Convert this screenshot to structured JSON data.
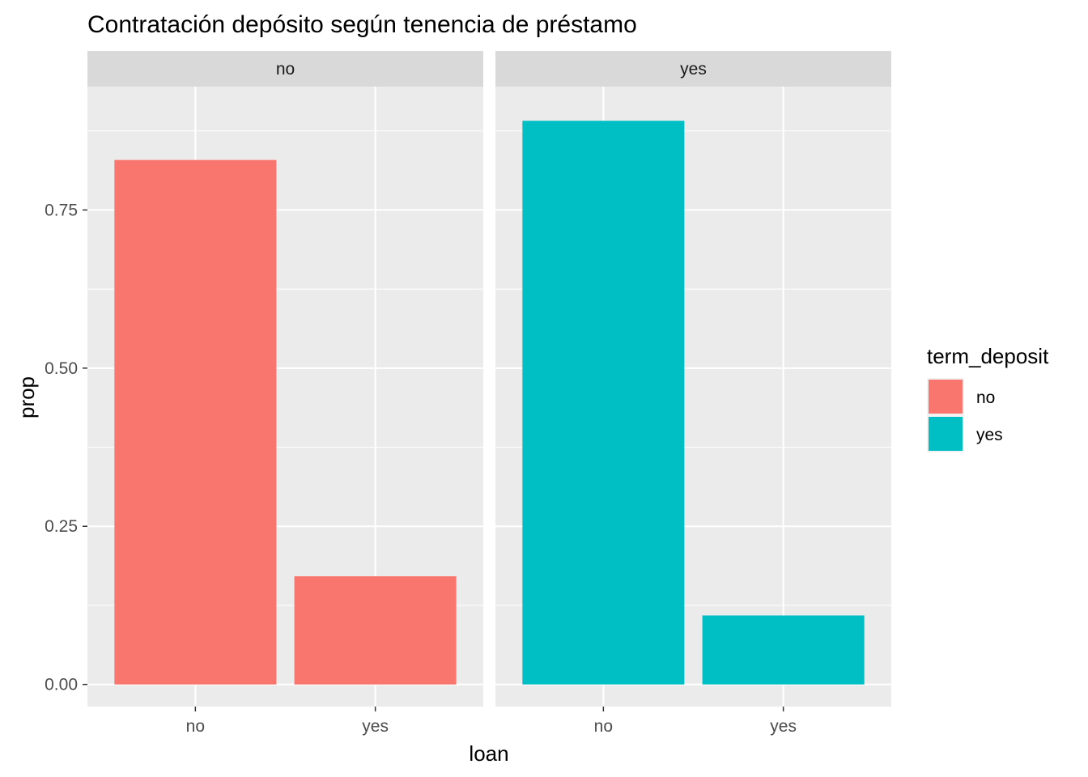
{
  "chart_data": {
    "type": "bar",
    "title": "Contratación depósito según tenencia de préstamo",
    "xlabel": "loan",
    "ylabel": "prop",
    "ylim": [
      -0.035,
      0.945
    ],
    "yticks": [
      0.0,
      0.25,
      0.5,
      0.75
    ],
    "ytick_labels": [
      "0.00",
      "0.25",
      "0.50",
      "0.75"
    ],
    "categories": [
      "no",
      "yes"
    ],
    "facet_variable": "term_deposit",
    "facets": [
      {
        "label": "no",
        "fill": "#F8766D",
        "values": [
          0.829,
          0.171
        ]
      },
      {
        "label": "yes",
        "fill": "#00BFC4",
        "values": [
          0.891,
          0.109
        ]
      }
    ],
    "legend": {
      "title": "term_deposit",
      "position": "right",
      "items": [
        {
          "label": "no",
          "color": "#F8766D"
        },
        {
          "label": "yes",
          "color": "#00BFC4"
        }
      ]
    },
    "grid": true,
    "panel_background": "#EBEBEB",
    "strip_background": "#D9D9D9"
  }
}
